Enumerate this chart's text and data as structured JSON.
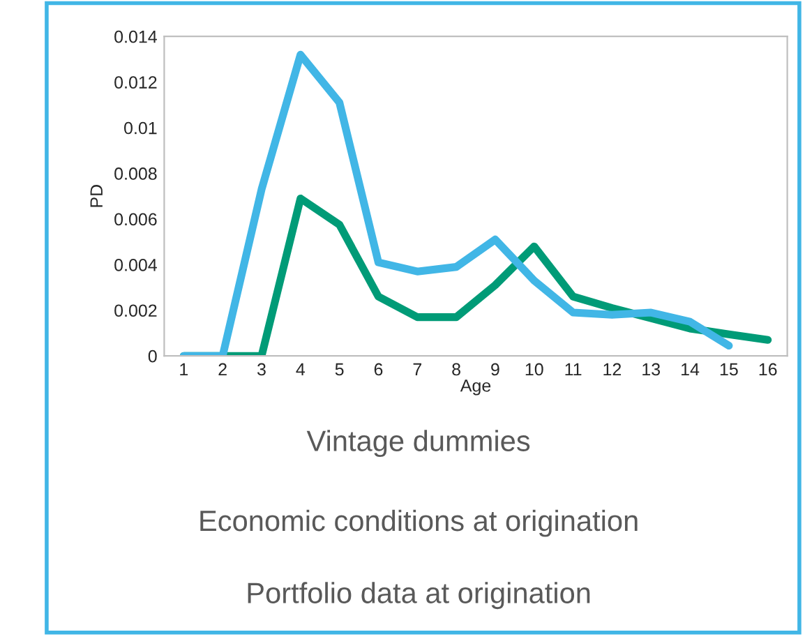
{
  "chart_data": {
    "type": "line",
    "xlabel": "Age",
    "ylabel": "PD",
    "categories": [
      "1",
      "2",
      "3",
      "4",
      "5",
      "6",
      "7",
      "8",
      "9",
      "10",
      "11",
      "12",
      "13",
      "14",
      "15",
      "16"
    ],
    "series": [
      {
        "color": "#009b77",
        "values": [
          0,
          0,
          0,
          0.0069,
          0.00575,
          0.0026,
          0.0017,
          0.0017,
          0.0031,
          0.0048,
          0.0026,
          0.0021,
          0.00165,
          0.0012,
          0.00095,
          0.0007
        ]
      },
      {
        "color": "#41b6e6",
        "values": [
          0,
          0,
          0.0073,
          0.0132,
          0.0111,
          0.0041,
          0.0037,
          0.0039,
          0.0051,
          0.0033,
          0.0019,
          0.0018,
          0.0019,
          0.0015,
          0.00045,
          null
        ]
      }
    ],
    "ylim": [
      0,
      0.014
    ],
    "yticks": [
      0,
      0.002,
      0.004,
      0.006,
      0.008,
      0.01,
      0.012,
      0.014
    ],
    "grid": false,
    "legend": false,
    "marker": "none",
    "line_style": "solid",
    "annotations": [
      "Vintage dummies",
      "Economic conditions at origination",
      "Portfolio data at origination"
    ]
  }
}
